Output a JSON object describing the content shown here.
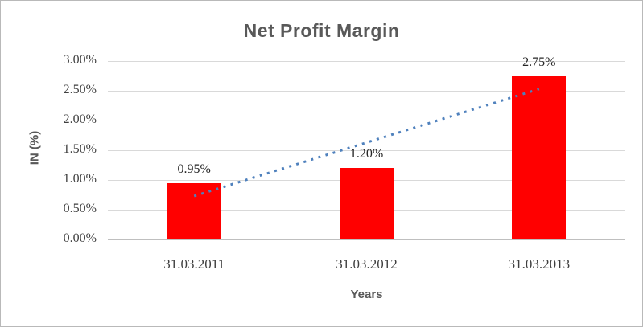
{
  "window": {
    "background_color": "#ffffff",
    "border_color": "#b9b9b9"
  },
  "chart_data": {
    "type": "bar",
    "title": "Net Profit Margin",
    "xlabel": "Years",
    "ylabel": "IN (%)",
    "categories": [
      "31.03.2011",
      "31.03.2012",
      "31.03.2013"
    ],
    "values": [
      0.95,
      1.2,
      2.75
    ],
    "data_labels": [
      "0.95%",
      "1.20%",
      "2.75%"
    ],
    "ylim": [
      0,
      3
    ],
    "ytick_step": 0.5,
    "ytick_labels": [
      "0.00%",
      "0.50%",
      "1.00%",
      "1.50%",
      "2.00%",
      "2.50%",
      "3.00%"
    ],
    "grid": true,
    "legend": "none",
    "bar_color": "#ff0000",
    "gridline_color": "#d9d9d9",
    "axis_line_color": "#bfbfbf",
    "title_color": "#595959",
    "tick_label_color": "#3f3f3f",
    "data_label_color": "#262626",
    "trendline": {
      "type": "linear",
      "style": "dotted",
      "color": "#4f81bd",
      "start_value": 0.73,
      "end_value": 2.53
    }
  }
}
